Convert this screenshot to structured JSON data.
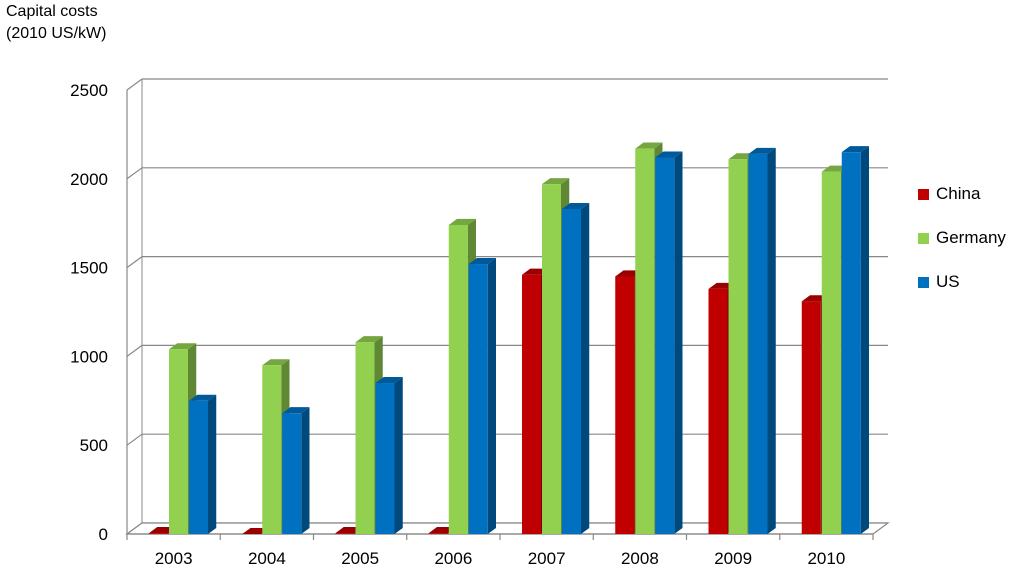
{
  "chart_data": {
    "type": "bar",
    "ylabel_line1": "Capital costs",
    "ylabel_line2": "(2010 US/kW)",
    "categories": [
      "2003",
      "2004",
      "2005",
      "2006",
      "2007",
      "2008",
      "2009",
      "2010"
    ],
    "series": [
      {
        "name": "China",
        "color": "#c00000",
        "values": [
          5,
          0,
          5,
          5,
          1460,
          1450,
          1380,
          1310
        ]
      },
      {
        "name": "Germany",
        "color": "#92d050",
        "values": [
          1040,
          950,
          1080,
          1740,
          1970,
          2170,
          2110,
          2040
        ]
      },
      {
        "name": "US",
        "color": "#0070c0",
        "values": [
          750,
          680,
          850,
          1520,
          1830,
          2120,
          2140,
          2150
        ]
      }
    ],
    "ylim": [
      0,
      2500
    ],
    "yticks": [
      0,
      500,
      1000,
      1500,
      2000,
      2500
    ],
    "grid": true,
    "legend_position": "right"
  }
}
